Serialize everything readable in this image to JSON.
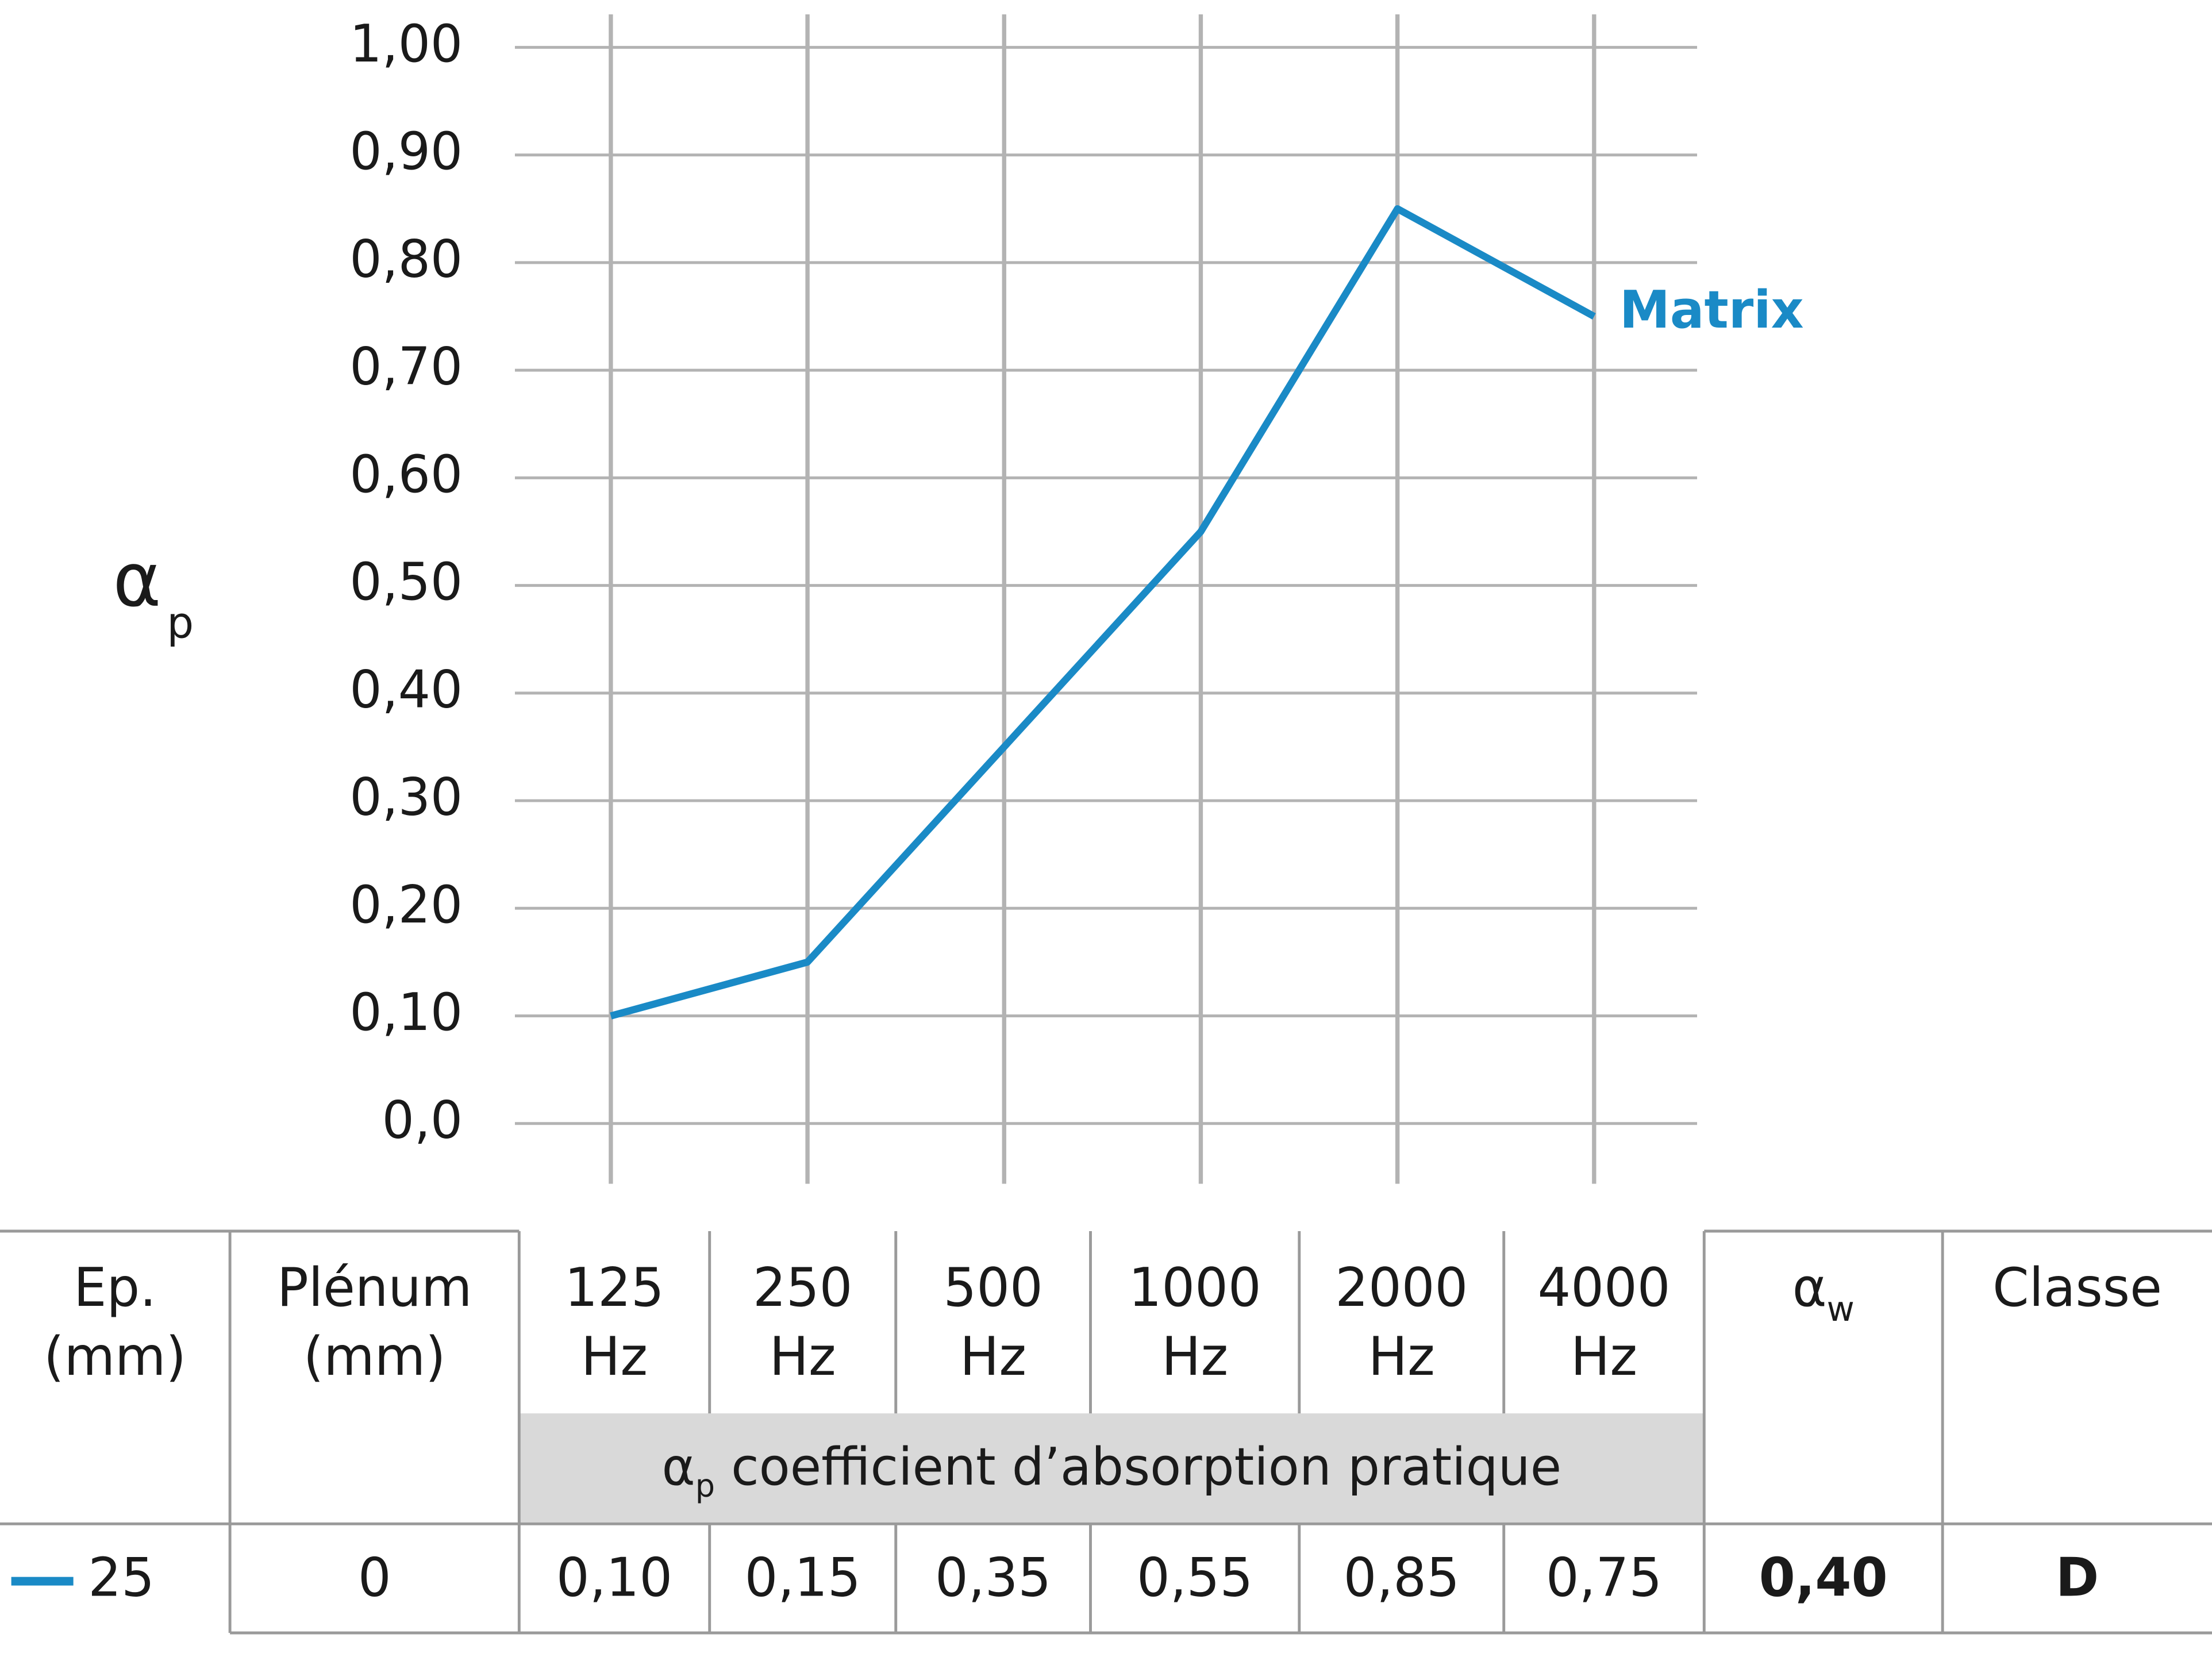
{
  "chart_data": {
    "type": "line",
    "ylabel": {
      "symbol": "α",
      "subscript": "p"
    },
    "categories": [
      "125 Hz",
      "250 Hz",
      "500 Hz",
      "1000 Hz",
      "2000 Hz",
      "4000 Hz"
    ],
    "series": [
      {
        "name": "Matrix",
        "color": "#1a8ac6",
        "values": [
          0.1,
          0.15,
          0.35,
          0.55,
          0.85,
          0.75
        ]
      }
    ],
    "ylim": [
      0,
      1
    ],
    "yticks": [
      {
        "value": 0,
        "label": "0,0"
      },
      {
        "value": 0.1,
        "label": "0,10"
      },
      {
        "value": 0.2,
        "label": "0,20"
      },
      {
        "value": 0.3,
        "label": "0,30"
      },
      {
        "value": 0.4,
        "label": "0,40"
      },
      {
        "value": 0.5,
        "label": "0,50"
      },
      {
        "value": 0.6,
        "label": "0,60"
      },
      {
        "value": 0.7,
        "label": "0,70"
      },
      {
        "value": 0.8,
        "label": "0,80"
      },
      {
        "value": 0.9,
        "label": "0,90"
      },
      {
        "value": 1,
        "label": "1,00"
      }
    ],
    "grid": true
  },
  "table": {
    "header": [
      [
        "Ep.",
        "(mm)"
      ],
      [
        "Plénum",
        "(mm)"
      ],
      [
        "125",
        "Hz"
      ],
      [
        "250",
        "Hz"
      ],
      [
        "500",
        "Hz"
      ],
      [
        "1000",
        "Hz"
      ],
      [
        "2000",
        "Hz"
      ],
      [
        "4000",
        "Hz"
      ],
      {
        "symbol": "α",
        "subscript": "w"
      },
      [
        "Classe"
      ]
    ],
    "subheader": {
      "symbol": "α",
      "subscript": "p",
      "text": " coefficient d’absorption pratique"
    },
    "rows": [
      [
        "25",
        "0",
        "0,10",
        "0,15",
        "0,35",
        "0,55",
        "0,85",
        "0,75",
        "0,40",
        "D"
      ]
    ]
  }
}
